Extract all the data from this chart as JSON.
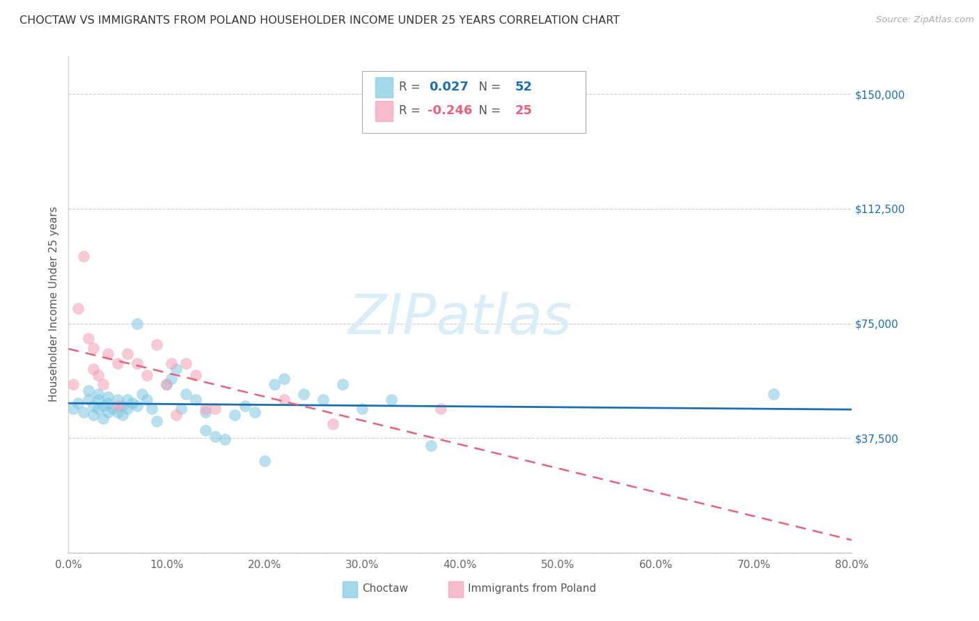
{
  "title": "CHOCTAW VS IMMIGRANTS FROM POLAND HOUSEHOLDER INCOME UNDER 25 YEARS CORRELATION CHART",
  "source": "Source: ZipAtlas.com",
  "ylabel": "Householder Income Under 25 years",
  "yticks": [
    0,
    37500,
    75000,
    112500,
    150000
  ],
  "ytick_labels": [
    "",
    "$37,500",
    "$75,000",
    "$112,500",
    "$150,000"
  ],
  "xlim": [
    0.0,
    0.8
  ],
  "ylim": [
    0,
    162500
  ],
  "choctaw_R": 0.027,
  "choctaw_N": 52,
  "poland_R": -0.246,
  "poland_N": 25,
  "choctaw_color": "#7ec8e3",
  "poland_color": "#f4a0b5",
  "choctaw_line_color": "#1a6faf",
  "poland_line_color": "#e8607a",
  "watermark": "ZIPatlas",
  "watermark_color": "#daeef8",
  "background_color": "#ffffff",
  "choctaw_x": [
    0.005,
    0.01,
    0.015,
    0.02,
    0.02,
    0.025,
    0.025,
    0.03,
    0.03,
    0.03,
    0.035,
    0.035,
    0.04,
    0.04,
    0.04,
    0.045,
    0.05,
    0.05,
    0.055,
    0.055,
    0.06,
    0.06,
    0.065,
    0.07,
    0.07,
    0.075,
    0.08,
    0.085,
    0.09,
    0.1,
    0.105,
    0.11,
    0.115,
    0.12,
    0.13,
    0.14,
    0.14,
    0.15,
    0.16,
    0.17,
    0.18,
    0.19,
    0.2,
    0.21,
    0.22,
    0.24,
    0.26,
    0.28,
    0.3,
    0.33,
    0.37,
    0.72
  ],
  "choctaw_y": [
    47000,
    49000,
    46000,
    50000,
    53000,
    48000,
    45000,
    50000,
    47000,
    52000,
    48000,
    44000,
    49000,
    46000,
    51000,
    47000,
    50000,
    46000,
    48000,
    45000,
    50000,
    47000,
    49000,
    75000,
    48000,
    52000,
    50000,
    47000,
    43000,
    55000,
    57000,
    60000,
    47000,
    52000,
    50000,
    40000,
    46000,
    38000,
    37000,
    45000,
    48000,
    46000,
    30000,
    55000,
    57000,
    52000,
    50000,
    55000,
    47000,
    50000,
    35000,
    52000
  ],
  "poland_x": [
    0.005,
    0.01,
    0.015,
    0.02,
    0.025,
    0.025,
    0.03,
    0.035,
    0.04,
    0.05,
    0.05,
    0.06,
    0.07,
    0.08,
    0.09,
    0.1,
    0.105,
    0.11,
    0.12,
    0.13,
    0.14,
    0.15,
    0.22,
    0.27,
    0.38
  ],
  "poland_y": [
    55000,
    80000,
    97000,
    70000,
    67000,
    60000,
    58000,
    55000,
    65000,
    62000,
    48000,
    65000,
    62000,
    58000,
    68000,
    55000,
    62000,
    45000,
    62000,
    58000,
    47000,
    47000,
    50000,
    42000,
    47000
  ],
  "legend_box_color": "#ffffff",
  "legend_border_color": "#bbbbbb"
}
